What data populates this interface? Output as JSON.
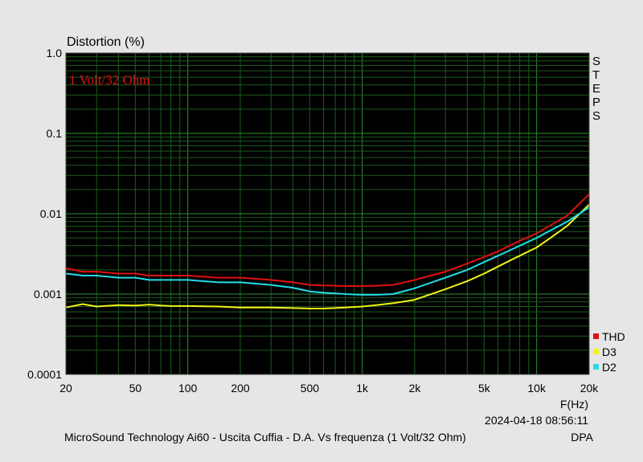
{
  "chart_data": {
    "type": "line",
    "title": "Distortion (%)",
    "annotation": "1 Volt/32 Ohm",
    "xlabel": "F(Hz)",
    "x_scale": "log",
    "y_scale": "log",
    "xlim": [
      20,
      20000
    ],
    "ylim": [
      0.0001,
      1.0
    ],
    "x_ticks": [
      {
        "value": 20,
        "label": "20"
      },
      {
        "value": 50,
        "label": "50"
      },
      {
        "value": 100,
        "label": "100"
      },
      {
        "value": 200,
        "label": "200"
      },
      {
        "value": 500,
        "label": "500"
      },
      {
        "value": 1000,
        "label": "1k"
      },
      {
        "value": 2000,
        "label": "2k"
      },
      {
        "value": 5000,
        "label": "5k"
      },
      {
        "value": 10000,
        "label": "10k"
      },
      {
        "value": 20000,
        "label": "20k"
      }
    ],
    "y_ticks": [
      {
        "value": 1.0,
        "label": "1.0"
      },
      {
        "value": 0.1,
        "label": "0.1"
      },
      {
        "value": 0.01,
        "label": "0.01"
      },
      {
        "value": 0.001,
        "label": "0.001"
      },
      {
        "value": 0.0001,
        "label": "0.0001"
      }
    ],
    "grid": true,
    "legend_position": "bottom-right",
    "side_label": [
      "S",
      "T",
      "E",
      "P",
      "S"
    ],
    "timestamp": "2024-04-18 08:56:11",
    "footer": "MicroSound Technology Ai60 - Uscita Cuffia - D.A. Vs frequenza (1 Volt/32 Ohm)",
    "footer_right": "DPA",
    "series": [
      {
        "name": "THD",
        "color": "#e01010",
        "x": [
          20,
          25,
          30,
          40,
          50,
          60,
          70,
          80,
          100,
          150,
          200,
          300,
          400,
          500,
          600,
          700,
          800,
          1000,
          1200,
          1500,
          2000,
          3000,
          4000,
          5000,
          6000,
          7000,
          8000,
          10000,
          12000,
          15000,
          20000
        ],
        "y": [
          0.0021,
          0.0019,
          0.0019,
          0.0018,
          0.0018,
          0.0017,
          0.0017,
          0.0017,
          0.0017,
          0.0016,
          0.0016,
          0.0015,
          0.0014,
          0.0013,
          0.00128,
          0.00127,
          0.00126,
          0.00126,
          0.00127,
          0.0013,
          0.0015,
          0.0019,
          0.0024,
          0.0029,
          0.0034,
          0.004,
          0.0046,
          0.0057,
          0.0072,
          0.0095,
          0.0175
        ]
      },
      {
        "name": "D3",
        "color": "#f2f21a",
        "x": [
          20,
          25,
          30,
          40,
          50,
          60,
          70,
          80,
          100,
          150,
          200,
          300,
          400,
          500,
          600,
          700,
          800,
          1000,
          1200,
          1500,
          2000,
          3000,
          4000,
          5000,
          6000,
          7000,
          8000,
          10000,
          12000,
          15000,
          20000
        ],
        "y": [
          0.00068,
          0.00075,
          0.0007,
          0.00073,
          0.00072,
          0.00074,
          0.00072,
          0.00071,
          0.00071,
          0.0007,
          0.00068,
          0.00068,
          0.00067,
          0.00066,
          0.00066,
          0.00067,
          0.00068,
          0.0007,
          0.00073,
          0.00077,
          0.00085,
          0.00115,
          0.00145,
          0.0018,
          0.0022,
          0.0026,
          0.003,
          0.0038,
          0.005,
          0.0071,
          0.013
        ]
      },
      {
        "name": "D2",
        "color": "#22dde8",
        "x": [
          20,
          25,
          30,
          40,
          50,
          60,
          70,
          80,
          100,
          150,
          200,
          300,
          400,
          500,
          600,
          700,
          800,
          1000,
          1200,
          1500,
          2000,
          3000,
          4000,
          5000,
          6000,
          7000,
          8000,
          10000,
          12000,
          15000,
          20000
        ],
        "y": [
          0.0018,
          0.0017,
          0.0017,
          0.0016,
          0.0016,
          0.0015,
          0.0015,
          0.0015,
          0.0015,
          0.0014,
          0.0014,
          0.0013,
          0.0012,
          0.00108,
          0.00104,
          0.00102,
          0.001,
          0.00098,
          0.00098,
          0.001,
          0.00118,
          0.0016,
          0.002,
          0.0025,
          0.003,
          0.0035,
          0.004,
          0.005,
          0.0062,
          0.008,
          0.012
        ]
      }
    ]
  }
}
